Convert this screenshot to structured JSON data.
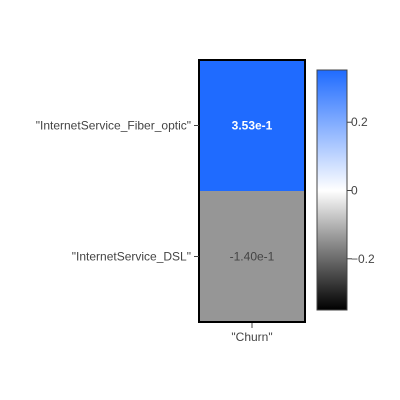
{
  "chart_data": {
    "type": "heatmap",
    "title": "",
    "x_categories": [
      "\"Churn\""
    ],
    "y_categories": [
      "\"InternetService_Fiber_optic\"",
      "\"InternetService_DSL\""
    ],
    "values": [
      [
        0.353
      ],
      [
        -0.14
      ]
    ],
    "cell_labels": [
      [
        "3.53e-1"
      ],
      [
        "-1.40e-1"
      ]
    ],
    "colorscale": {
      "range": [
        -0.35,
        0.353
      ],
      "stops": [
        {
          "value": -0.35,
          "color": "#000000"
        },
        {
          "value": -0.14,
          "color": "#969696"
        },
        {
          "value": 0.0,
          "color": "#ffffff"
        },
        {
          "value": 0.353,
          "color": "#1f6bff"
        }
      ],
      "ticks": [
        {
          "value": 0.2,
          "label": "0.2"
        },
        {
          "value": 0,
          "label": "0"
        },
        {
          "value": -0.2,
          "label": "−0.2"
        }
      ]
    },
    "cell_text_colors": [
      "#ffffff",
      "#444444"
    ]
  }
}
